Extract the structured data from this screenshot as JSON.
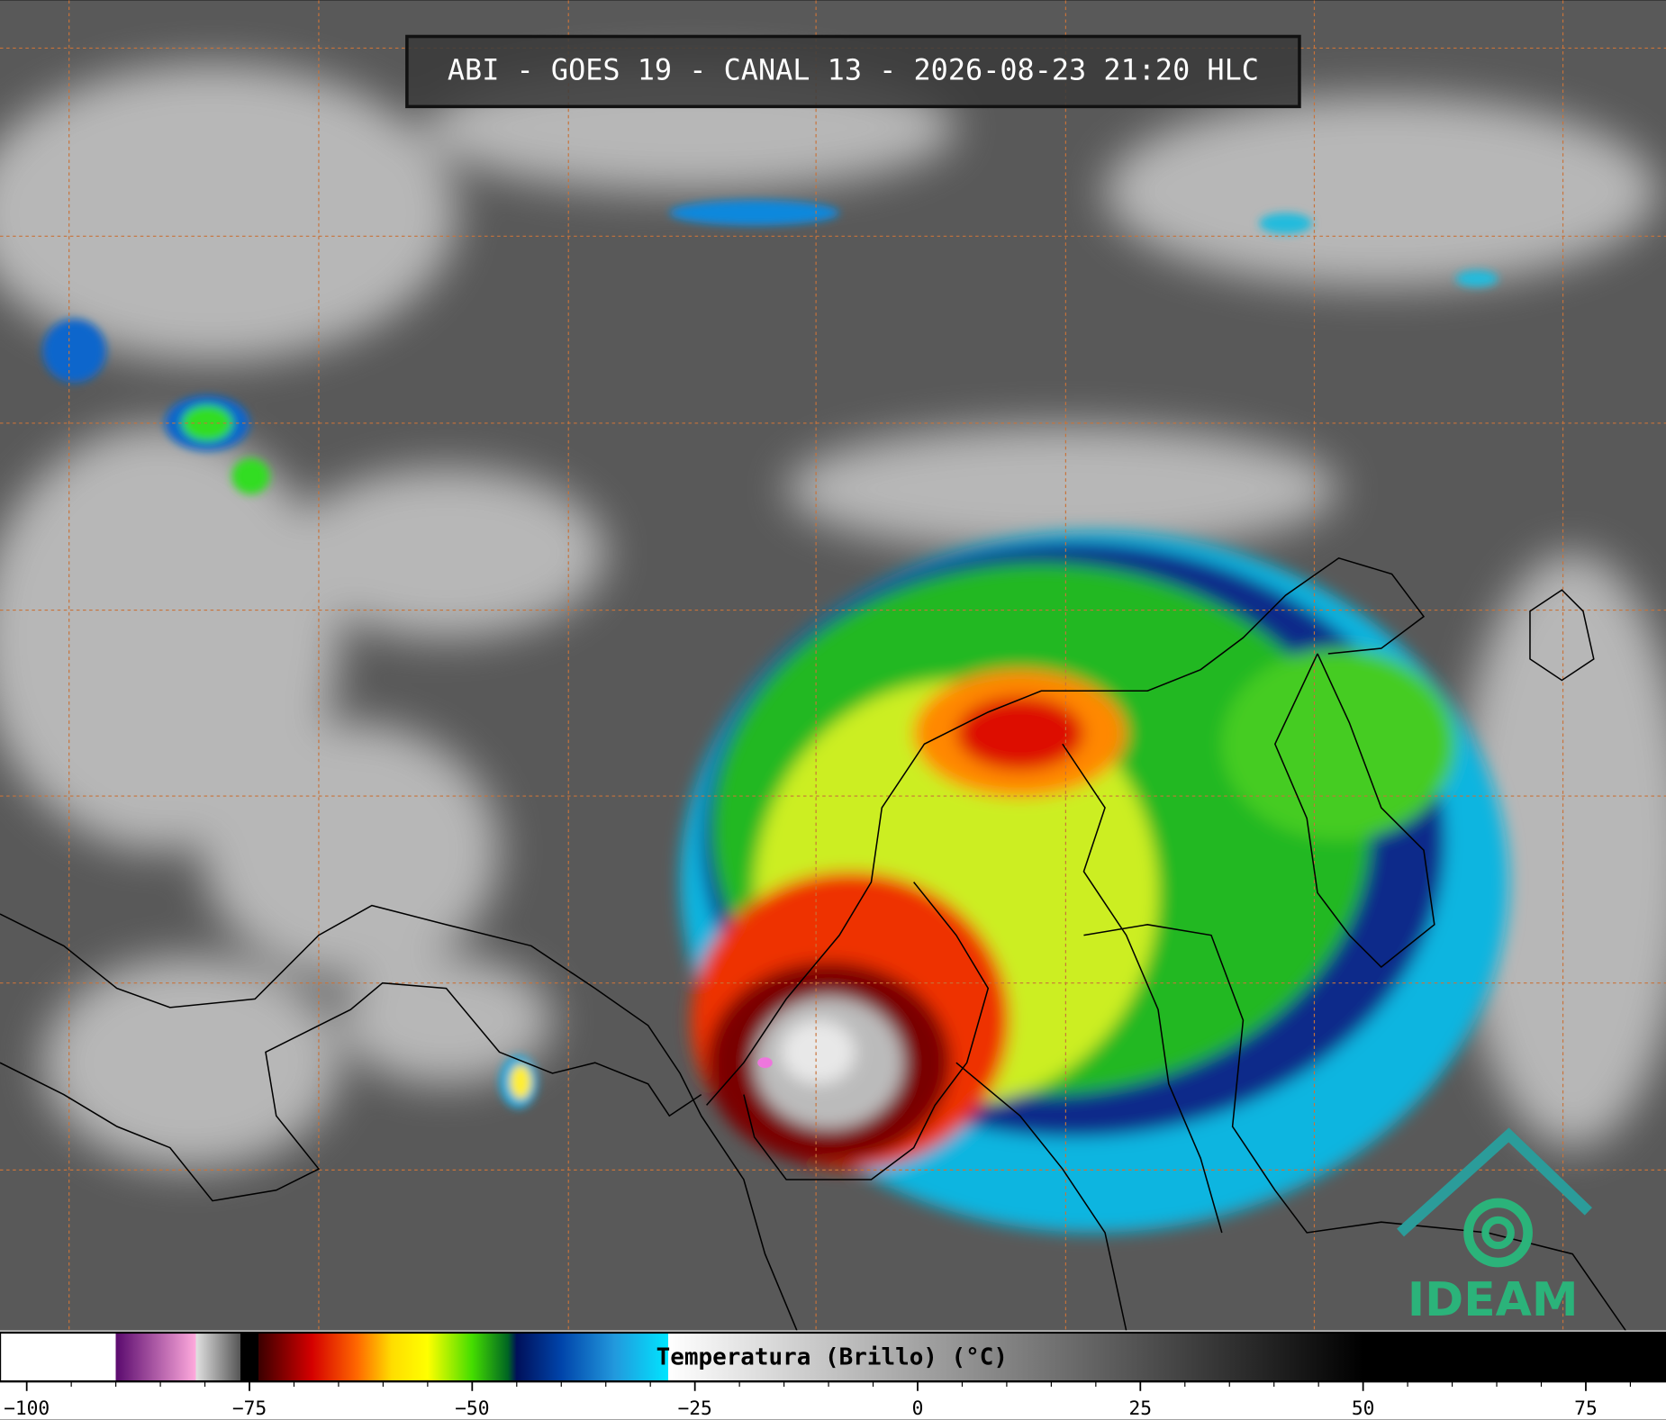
{
  "header": {
    "title": "ABI - GOES 19 - CANAL 13 - 2026-08-23 21:20 HLC"
  },
  "colorbar": {
    "label": "Temperatura (Brillo) (°C)",
    "lim": [
      -103,
      84
    ],
    "ticks": [
      {
        "value": -100,
        "label": "−100"
      },
      {
        "value": -75,
        "label": "−75"
      },
      {
        "value": -50,
        "label": "−50"
      },
      {
        "value": -25,
        "label": "−25"
      },
      0,
      25,
      50,
      75
    ],
    "minor_ticks": [
      -95,
      -90,
      -85,
      -80,
      -70,
      -65,
      -60,
      -55,
      -45,
      -40,
      -35,
      -30,
      -20,
      -15,
      -10,
      -5,
      5,
      10,
      15,
      20,
      30,
      35,
      40,
      45,
      55,
      60,
      65,
      70,
      80
    ],
    "stops": [
      {
        "value": -103,
        "color": "#ffffff"
      },
      {
        "value": -90,
        "color": "#ffffff"
      },
      {
        "value": -90,
        "color": "#5a0a6e"
      },
      {
        "value": -81,
        "color": "#ffaadd"
      },
      {
        "value": -81,
        "color": "#e0e0e0"
      },
      {
        "value": -76,
        "color": "#555555"
      },
      {
        "value": -76,
        "color": "#000000"
      },
      {
        "value": -74,
        "color": "#000000"
      },
      {
        "value": -74,
        "color": "#3a0000"
      },
      {
        "value": -68,
        "color": "#d40000"
      },
      {
        "value": -63,
        "color": "#ff6600"
      },
      {
        "value": -59,
        "color": "#ffdd00"
      },
      {
        "value": -55,
        "color": "#ffff00"
      },
      {
        "value": -50,
        "color": "#44dd00"
      },
      {
        "value": -46,
        "color": "#006622"
      },
      {
        "value": -45,
        "color": "#00105a"
      },
      {
        "value": -40,
        "color": "#0044aa"
      },
      {
        "value": -34,
        "color": "#2299dd"
      },
      {
        "value": -28,
        "color": "#00e5ff"
      },
      {
        "value": -28,
        "color": "#ffffff"
      },
      {
        "value": 50,
        "color": "#000000"
      },
      {
        "value": 84,
        "color": "#000000"
      }
    ]
  },
  "logo": {
    "text": "IDEAM"
  }
}
